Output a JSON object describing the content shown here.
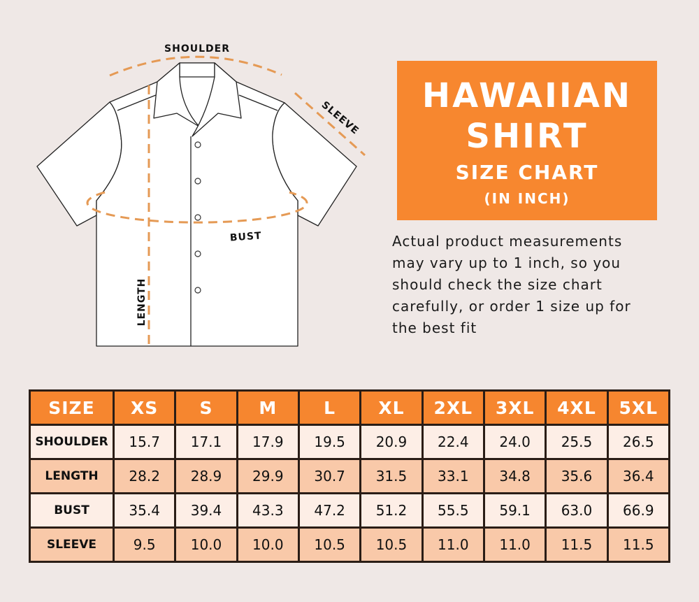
{
  "diagram": {
    "labels": {
      "shoulder": "SHOULDER",
      "sleeve": "SLEEVE",
      "bust": "BUST",
      "length": "LENGTH"
    },
    "colors": {
      "dash": "#e59a55",
      "outline": "#222222",
      "shirt_fill": "#ffffff"
    }
  },
  "title_box": {
    "line1": "HAWAIIAN",
    "line2": "SHIRT",
    "line3": "SIZE CHART",
    "line4": "(IN INCH)",
    "color": "#f7872f"
  },
  "note": {
    "lines": [
      "Actual product measurements",
      "may vary up to 1 inch, so you",
      "should check the size chart",
      "carefully, or order 1 size up for",
      "the best fit"
    ]
  },
  "table": {
    "header": [
      "SIZE",
      "XS",
      "S",
      "M",
      "L",
      "XL",
      "2XL",
      "3XL",
      "4XL",
      "5XL"
    ],
    "rows": [
      {
        "label": "SHOULDER",
        "values": [
          "15.7",
          "17.1",
          "17.9",
          "19.5",
          "20.9",
          "22.4",
          "24.0",
          "25.5",
          "26.5"
        ]
      },
      {
        "label": "LENGTH",
        "values": [
          "28.2",
          "28.9",
          "29.9",
          "30.7",
          "31.5",
          "33.1",
          "34.8",
          "35.6",
          "36.4"
        ]
      },
      {
        "label": "BUST",
        "values": [
          "35.4",
          "39.4",
          "43.3",
          "47.2",
          "51.2",
          "55.5",
          "59.1",
          "63.0",
          "66.9"
        ]
      },
      {
        "label": "SLEEVE",
        "values": [
          "9.5",
          "10.0",
          "10.0",
          "10.5",
          "10.5",
          "11.0",
          "11.0",
          "11.5",
          "11.5"
        ]
      }
    ],
    "colors": {
      "header": "#f6862f",
      "row_light": "#fdeee6",
      "row_dark": "#f9c9a9",
      "border": "#2a1d16"
    }
  }
}
